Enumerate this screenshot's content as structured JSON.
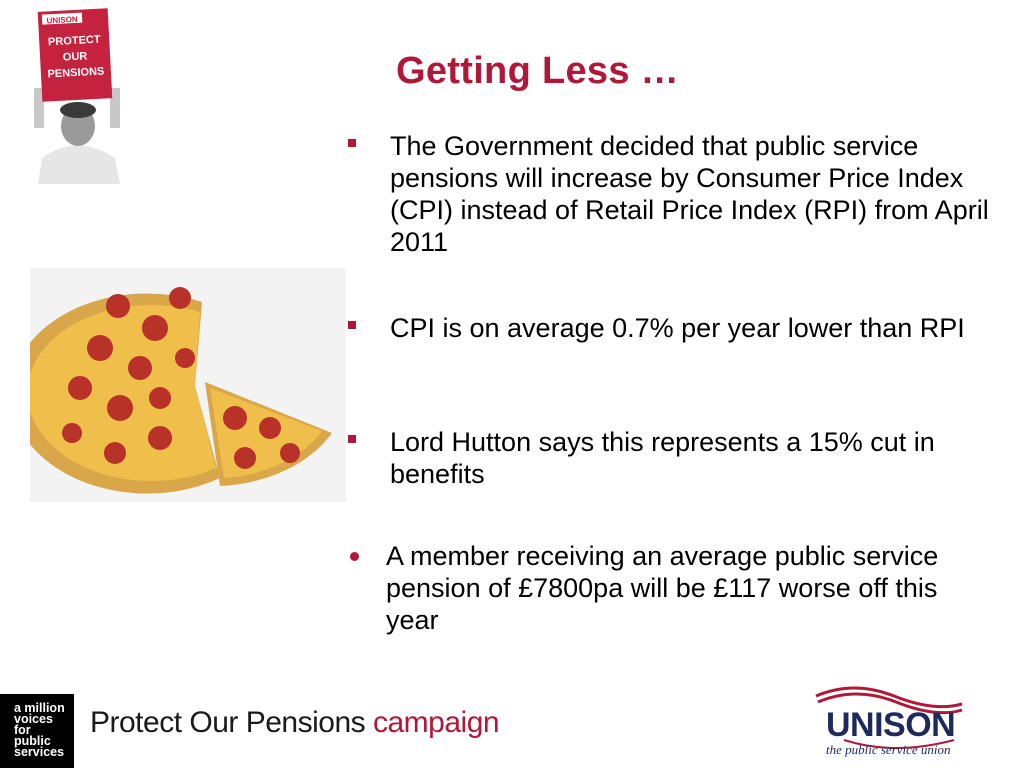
{
  "slide": {
    "title": "Getting Less …"
  },
  "bullets": [
    {
      "text": "The Government decided that public service pensions will increase by Consumer Price Index (CPI) instead of Retail Price Index (RPI) from April 2011",
      "marker": "square"
    },
    {
      "text": "CPI is on average 0.7% per year lower than RPI",
      "marker": "square"
    },
    {
      "text": "Lord Hutton says this represents a 15% cut in benefits",
      "marker": "square"
    },
    {
      "text": "A member receiving an average public service pension of £7800pa will be £117 worse off this year",
      "marker": "round"
    }
  ],
  "poster": {
    "lines": [
      "UNISON",
      "PROTECT",
      "OUR",
      "PENSIONS"
    ]
  },
  "footer": {
    "badge_lines": [
      "a million",
      "voices",
      "for",
      "public",
      "services"
    ],
    "campaign_part1": "Protect Our Pensions",
    "campaign_part2": "campaign",
    "unison_name": "UNISON",
    "unison_tagline": "the public service union"
  },
  "colors": {
    "accent": "#b0183a",
    "unison_navy": "#1f2a5c"
  }
}
